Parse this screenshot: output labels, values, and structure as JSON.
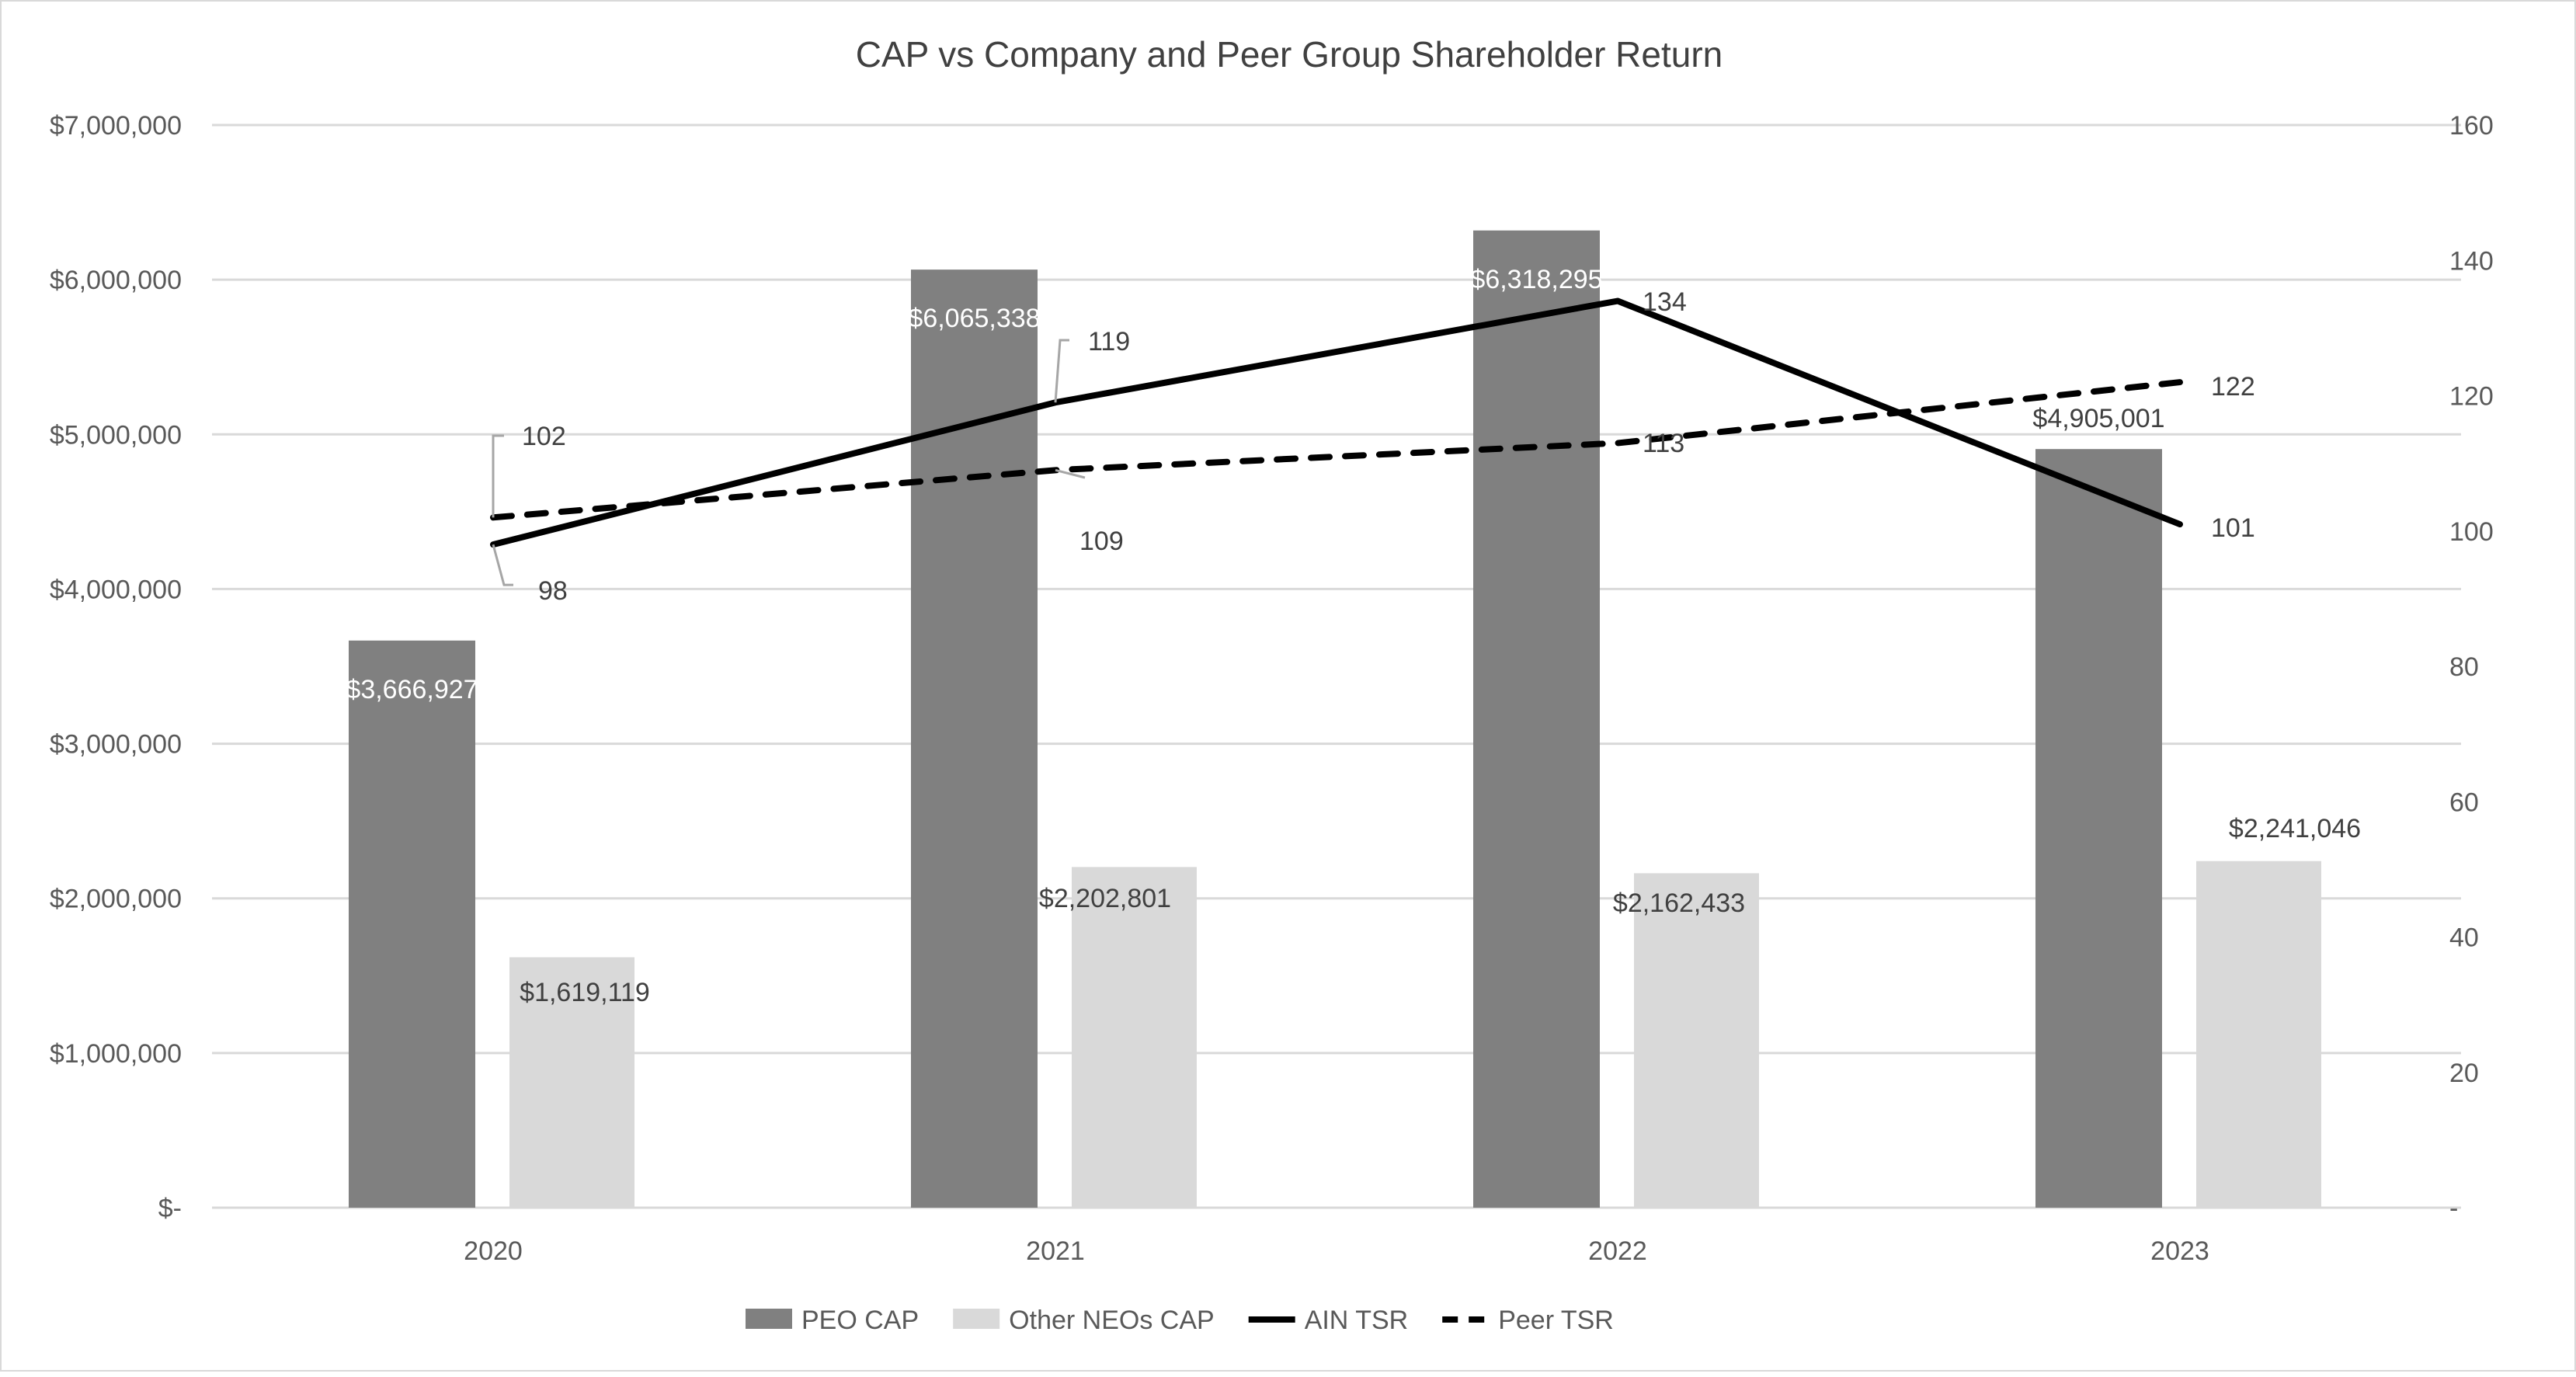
{
  "chart_data": {
    "type": "bar",
    "title": "CAP vs Company and Peer Group Shareholder Return",
    "categories": [
      "2020",
      "2021",
      "2022",
      "2023"
    ],
    "y_left": {
      "range": [
        0,
        7000000
      ],
      "ticks": [
        "$-",
        "$1,000,000",
        "$2,000,000",
        "$3,000,000",
        "$4,000,000",
        "$5,000,000",
        "$6,000,000",
        "$7,000,000"
      ]
    },
    "y_right": {
      "range": [
        0,
        160
      ],
      "ticks": [
        "-",
        "20",
        "40",
        "60",
        "80",
        "100",
        "120",
        "140",
        "160"
      ]
    },
    "grid": true,
    "legend_placement": "bottom",
    "series": [
      {
        "name": "PEO CAP",
        "kind": "bar",
        "axis": "left",
        "color": "#808080",
        "values": [
          3666927,
          6065338,
          6318295,
          4905001
        ],
        "labels": [
          "$3,666,927",
          "$6,065,338",
          "$6,318,295",
          "$4,905,001"
        ]
      },
      {
        "name": "Other NEOs CAP",
        "kind": "bar",
        "axis": "left",
        "color": "#d9d9d9",
        "values": [
          1619119,
          2202801,
          2162433,
          2241046
        ],
        "labels": [
          "$1,619,119",
          "$2,202,801",
          "$2,162,433",
          "$2,241,046"
        ]
      },
      {
        "name": "AIN TSR",
        "kind": "line",
        "style": "solid",
        "axis": "right",
        "color": "#000000",
        "values": [
          98,
          119,
          134,
          101
        ],
        "labels": [
          "98",
          "119",
          "134",
          "101"
        ]
      },
      {
        "name": "Peer TSR",
        "kind": "line",
        "style": "dashed",
        "axis": "right",
        "color": "#000000",
        "values": [
          102,
          109,
          113,
          122
        ],
        "labels": [
          "102",
          "109",
          "113",
          "122"
        ]
      }
    ]
  }
}
